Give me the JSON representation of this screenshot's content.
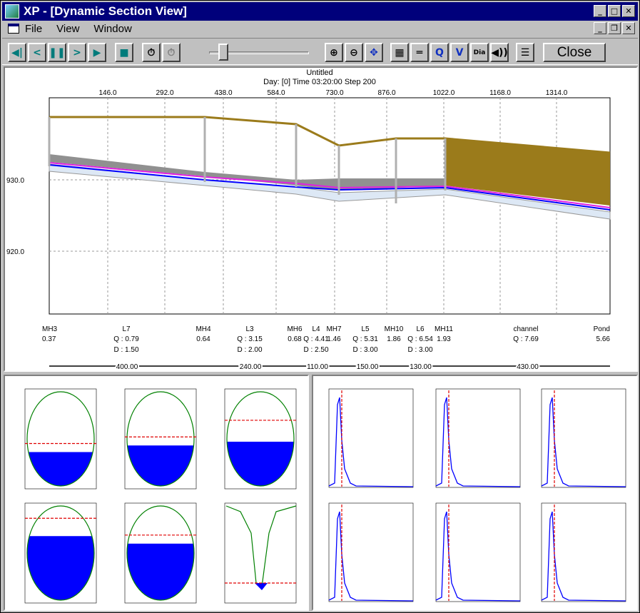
{
  "window": {
    "title": "XP - [Dynamic Section View]"
  },
  "menu": {
    "file": "File",
    "view": "View",
    "window": "Window"
  },
  "toolbar": {
    "close_label": "Close",
    "q_label": "Q",
    "v_label": "V",
    "dia_label": "Dia",
    "slider_position": 0.1
  },
  "colors": {
    "pipe_fill": "#9b7b1b",
    "water": "#0000ff",
    "hgl": "#e020e0",
    "accent_title": "#00007b"
  },
  "section": {
    "title": "Untitled",
    "subtitle": "Day: [0] Time 03:20:00 Step 200",
    "chainage_ticks": [
      "146.0",
      "292.0",
      "438.0",
      "584.0",
      "730.0",
      "876.0",
      "1022.0",
      "1168.0",
      "1314.0"
    ],
    "elev_ticks": [
      "930.0",
      "920.0"
    ],
    "nodes": [
      {
        "name": "MH3",
        "val": "0.37"
      },
      {
        "name": "MH4",
        "val": "0.64"
      },
      {
        "name": "MH6",
        "val": "0.68"
      },
      {
        "name": "MH7",
        "val": "1.46"
      },
      {
        "name": "MH10",
        "val": "1.86"
      },
      {
        "name": "MH11",
        "val": "1.93"
      },
      {
        "name": "Pond",
        "val": "5.66"
      }
    ],
    "links": [
      {
        "name": "L7",
        "q": "Q :  0.79",
        "d": "D :  1.50"
      },
      {
        "name": "L3",
        "q": "Q :  3.15",
        "d": "D :  2.00"
      },
      {
        "name": "L4",
        "q": "Q :  4.41",
        "d": "D :  2.50"
      },
      {
        "name": "L5",
        "q": "Q :  5.31",
        "d": "D :  3.00"
      },
      {
        "name": "L6",
        "q": "Q :  6.54",
        "d": "D :  3.00"
      },
      {
        "name": "channel",
        "q": "Q :  7.69",
        "d": ""
      }
    ],
    "lengths": [
      "400.00",
      "240.00",
      "110.00",
      "150.00",
      "130.00",
      "430.00"
    ]
  },
  "cross_sections": {
    "fill_levels": [
      0.36,
      0.43,
      0.47,
      0.68,
      0.6,
      0.1
    ]
  },
  "hydrographs": {
    "count": 6
  }
}
